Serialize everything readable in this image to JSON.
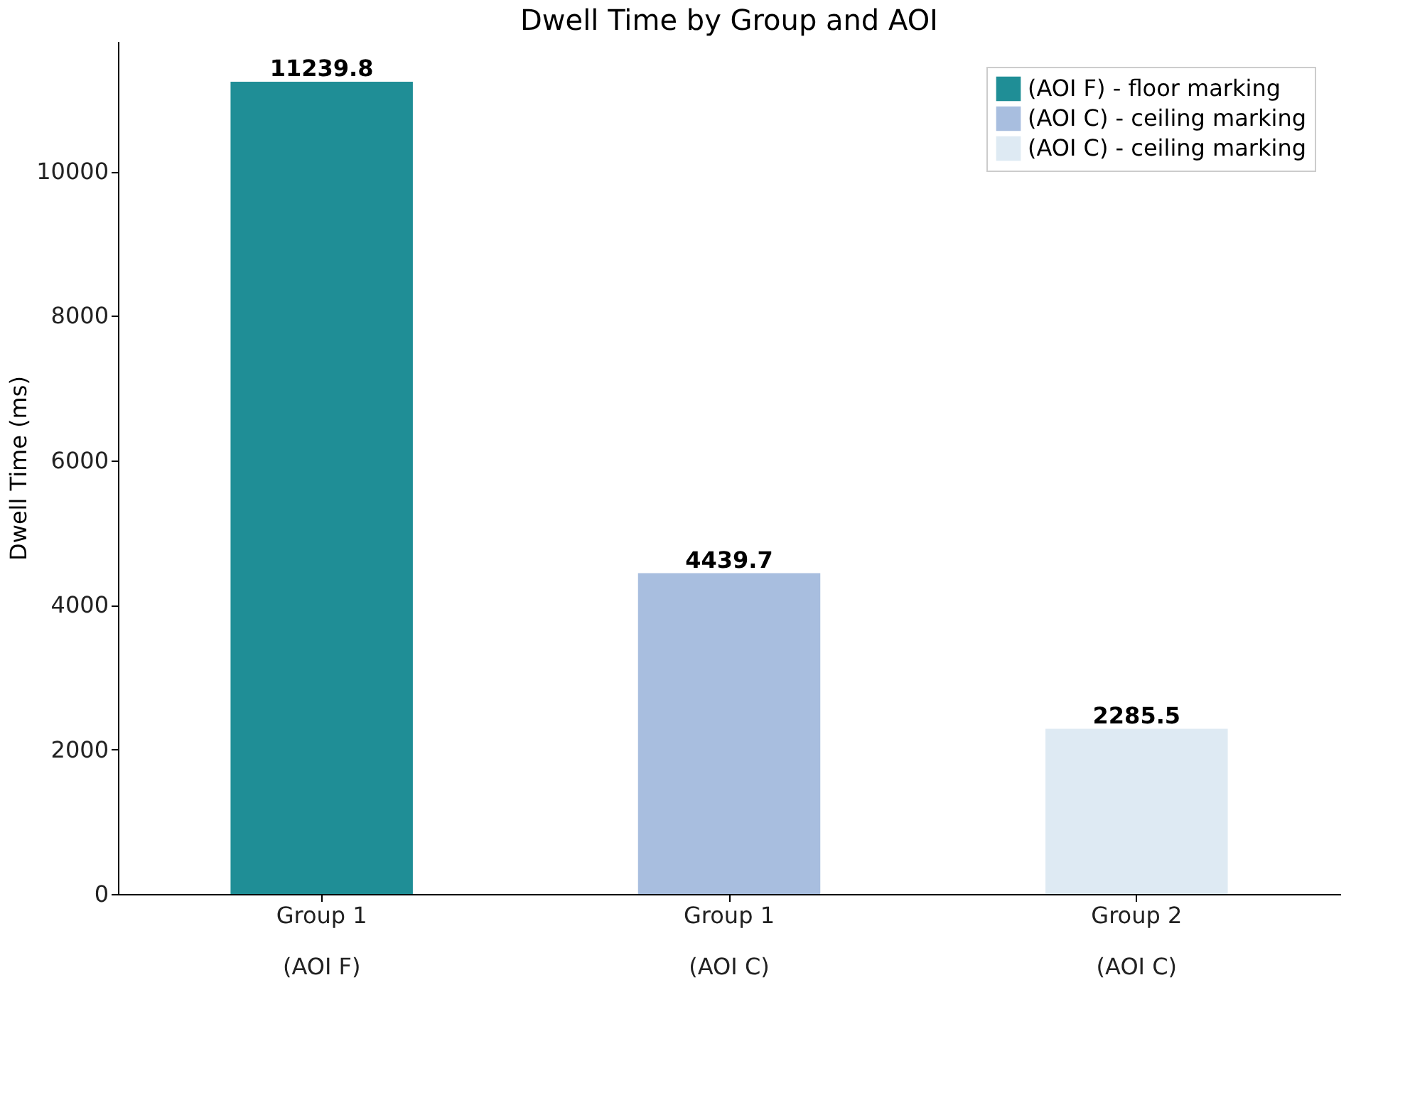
{
  "chart_data": {
    "type": "bar",
    "title": "Dwell Time by Group and AOI",
    "ylabel": "Dwell Time (ms)",
    "categories": [
      "Group 1\n(AOI F)",
      "Group 1\n(AOI C)",
      "Group 2\n(AOI C)"
    ],
    "series": [
      {
        "name": "(AOI F) - floor marking",
        "color": "#1f8e96",
        "values": [
          11239.8,
          null,
          null
        ]
      },
      {
        "name": "(AOI C) - ceiling marking",
        "color": "#a8bedf",
        "values": [
          null,
          4439.7,
          null
        ]
      },
      {
        "name": "(AOI C) - ceiling marking",
        "color": "#deeaf3",
        "values": [
          null,
          null,
          2285.5
        ]
      }
    ],
    "ylim": [
      0,
      11800
    ],
    "yticks": [
      0,
      2000,
      4000,
      6000,
      8000,
      10000
    ],
    "data_labels": true,
    "grid": false,
    "legend": "top right"
  }
}
